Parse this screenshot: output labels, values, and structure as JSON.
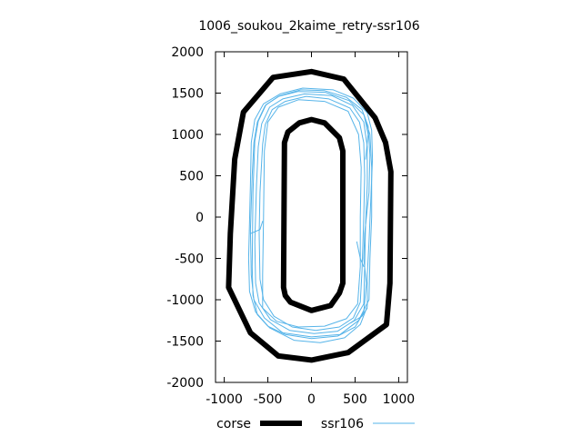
{
  "chart_data": {
    "type": "line",
    "title": "1006_soukou_2kaime_retry-ssr106",
    "xlabel": "",
    "ylabel": "",
    "xlim": [
      -1100,
      1100
    ],
    "ylim": [
      -2000,
      2000
    ],
    "x_ticks": [
      -1000,
      -500,
      0,
      500,
      1000
    ],
    "x_tick_labels": [
      "-1000",
      "-500",
      "0",
      "500",
      "1000"
    ],
    "y_ticks": [
      -2000,
      -1500,
      -1000,
      -500,
      0,
      500,
      1000,
      1500,
      2000
    ],
    "y_tick_labels": [
      "-2000",
      "-1500",
      "-1000",
      "-500",
      "0",
      "500",
      "1000",
      "1500",
      "2000"
    ],
    "grid": false,
    "legend_position": "bottom",
    "series": [
      {
        "name": "corse",
        "color": "#000000",
        "style": "thick",
        "paths": [
          [
            [
              -950,
              -850
            ],
            [
              -700,
              -1400
            ],
            [
              -380,
              -1680
            ],
            [
              0,
              -1730
            ],
            [
              420,
              -1640
            ],
            [
              860,
              -1300
            ],
            [
              900,
              -800
            ],
            [
              910,
              550
            ],
            [
              850,
              900
            ],
            [
              730,
              1200
            ],
            [
              370,
              1670
            ],
            [
              0,
              1760
            ],
            [
              -440,
              1690
            ],
            [
              -780,
              1270
            ],
            [
              -880,
              700
            ],
            [
              -930,
              -200
            ],
            [
              -950,
              -850
            ]
          ],
          [
            [
              -320,
              -850
            ],
            [
              -310,
              900
            ],
            [
              -270,
              1030
            ],
            [
              -140,
              1140
            ],
            [
              0,
              1180
            ],
            [
              150,
              1140
            ],
            [
              320,
              960
            ],
            [
              360,
              800
            ],
            [
              360,
              -800
            ],
            [
              320,
              -920
            ],
            [
              220,
              -1070
            ],
            [
              0,
              -1130
            ],
            [
              -240,
              -1030
            ],
            [
              -300,
              -950
            ],
            [
              -320,
              -850
            ]
          ]
        ]
      },
      {
        "name": "ssr106",
        "color": "#56b4e9",
        "style": "thin",
        "paths": [
          [
            [
              -700,
              -150
            ],
            [
              -690,
              -700
            ],
            [
              -660,
              -1000
            ],
            [
              -540,
              -1220
            ],
            [
              -330,
              -1400
            ],
            [
              0,
              -1450
            ],
            [
              330,
              -1420
            ],
            [
              540,
              -1250
            ],
            [
              660,
              -1000
            ],
            [
              670,
              -500
            ],
            [
              690,
              0
            ],
            [
              690,
              600
            ],
            [
              670,
              1000
            ],
            [
              600,
              1240
            ],
            [
              430,
              1410
            ],
            [
              160,
              1510
            ],
            [
              -150,
              1520
            ],
            [
              -380,
              1460
            ],
            [
              -530,
              1350
            ],
            [
              -620,
              1150
            ],
            [
              -660,
              900
            ],
            [
              -680,
              500
            ],
            [
              -700,
              -150
            ]
          ],
          [
            [
              -650,
              -300
            ],
            [
              -640,
              -800
            ],
            [
              -600,
              -1040
            ],
            [
              -470,
              -1240
            ],
            [
              -250,
              -1370
            ],
            [
              30,
              -1410
            ],
            [
              300,
              -1380
            ],
            [
              490,
              -1250
            ],
            [
              600,
              -1050
            ],
            [
              610,
              -600
            ],
            [
              620,
              -100
            ],
            [
              640,
              400
            ],
            [
              640,
              850
            ],
            [
              600,
              1150
            ],
            [
              470,
              1350
            ],
            [
              230,
              1470
            ],
            [
              -80,
              1490
            ],
            [
              -330,
              1430
            ],
            [
              -480,
              1330
            ],
            [
              -570,
              1130
            ],
            [
              -610,
              850
            ],
            [
              -630,
              400
            ],
            [
              -650,
              -300
            ]
          ],
          [
            [
              -720,
              -500
            ],
            [
              -710,
              -900
            ],
            [
              -640,
              -1150
            ],
            [
              -480,
              -1340
            ],
            [
              -200,
              -1490
            ],
            [
              100,
              -1520
            ],
            [
              380,
              -1460
            ],
            [
              560,
              -1300
            ],
            [
              640,
              -1080
            ],
            [
              640,
              -700
            ],
            [
              660,
              -300
            ],
            [
              680,
              200
            ],
            [
              700,
              700
            ],
            [
              690,
              1050
            ],
            [
              640,
              1260
            ],
            [
              480,
              1440
            ],
            [
              250,
              1540
            ],
            [
              -100,
              1560
            ],
            [
              -360,
              1490
            ],
            [
              -550,
              1370
            ],
            [
              -650,
              1180
            ],
            [
              -690,
              900
            ],
            [
              -700,
              400
            ],
            [
              -720,
              -500
            ]
          ],
          [
            [
              -600,
              -200
            ],
            [
              -590,
              -750
            ],
            [
              -550,
              -1000
            ],
            [
              -430,
              -1200
            ],
            [
              -220,
              -1330
            ],
            [
              50,
              -1370
            ],
            [
              320,
              -1330
            ],
            [
              480,
              -1220
            ],
            [
              560,
              -1030
            ],
            [
              580,
              -650
            ],
            [
              600,
              0
            ],
            [
              610,
              500
            ],
            [
              600,
              900
            ],
            [
              550,
              1150
            ],
            [
              440,
              1320
            ],
            [
              200,
              1430
            ],
            [
              -60,
              1460
            ],
            [
              -300,
              1400
            ],
            [
              -450,
              1300
            ],
            [
              -530,
              1120
            ],
            [
              -560,
              880
            ],
            [
              -590,
              300
            ],
            [
              -600,
              -200
            ]
          ],
          [
            [
              -680,
              -600
            ],
            [
              -670,
              -950
            ],
            [
              -620,
              -1180
            ],
            [
              -500,
              -1320
            ],
            [
              -300,
              -1420
            ],
            [
              0,
              -1470
            ],
            [
              300,
              -1440
            ],
            [
              500,
              -1330
            ],
            [
              600,
              -1150
            ],
            [
              630,
              -800
            ],
            [
              600,
              -500
            ],
            [
              610,
              -200
            ],
            [
              660,
              300
            ],
            [
              670,
              750
            ],
            [
              650,
              1100
            ],
            [
              580,
              1300
            ],
            [
              400,
              1450
            ],
            [
              150,
              1530
            ],
            [
              -120,
              1540
            ],
            [
              -360,
              1470
            ],
            [
              -520,
              1360
            ],
            [
              -610,
              1160
            ],
            [
              -650,
              920
            ],
            [
              -670,
              300
            ],
            [
              -680,
              -600
            ]
          ],
          [
            [
              -560,
              -1100
            ],
            [
              -400,
              -1260
            ],
            [
              -150,
              -1330
            ],
            [
              150,
              -1320
            ],
            [
              400,
              -1230
            ],
            [
              530,
              -1050
            ],
            [
              560,
              -600
            ],
            [
              560,
              0
            ],
            [
              570,
              600
            ],
            [
              540,
              1000
            ],
            [
              420,
              1280
            ],
            [
              150,
              1400
            ],
            [
              -150,
              1420
            ],
            [
              -380,
              1330
            ],
            [
              -500,
              1150
            ],
            [
              -540,
              800
            ],
            [
              -550,
              0
            ],
            [
              -560,
              -700
            ],
            [
              -560,
              -1100
            ]
          ],
          [
            [
              -700,
              -200
            ],
            [
              -590,
              -150
            ],
            [
              -560,
              -50
            ]
          ],
          [
            [
              600,
              -600
            ],
            [
              560,
              -500
            ],
            [
              520,
              -300
            ]
          ],
          [
            [
              640,
              -1100
            ],
            [
              580,
              -1200
            ],
            [
              450,
              -1280
            ]
          ],
          [
            [
              610,
              1200
            ],
            [
              650,
              1000
            ],
            [
              620,
              700
            ]
          ]
        ]
      }
    ]
  }
}
